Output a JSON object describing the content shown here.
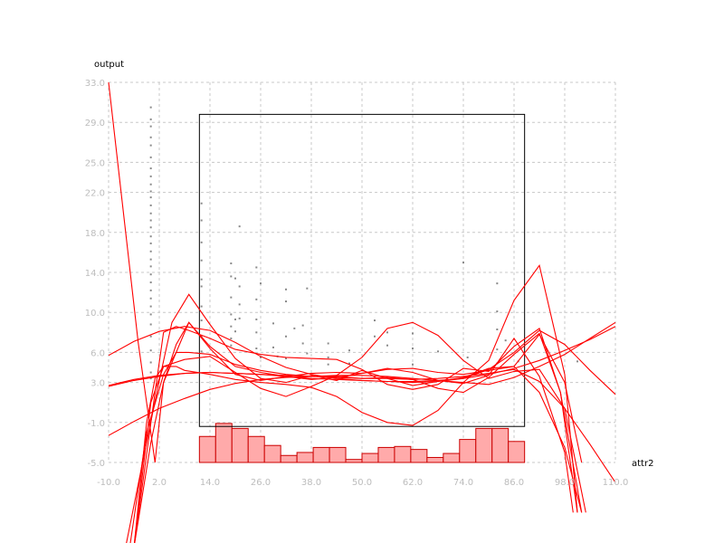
{
  "chart_data": {
    "type": "line",
    "xlabel": "attr2",
    "ylabel": "output",
    "xlim": [
      -10,
      110
    ],
    "ylim": [
      -5,
      33
    ],
    "x_ticks": [
      "-10.0",
      "2.0",
      "14.0",
      "26.0",
      "38.0",
      "50.0",
      "62.0",
      "74.0",
      "86.0",
      "98.0",
      "110.0"
    ],
    "y_ticks": [
      "-5.0",
      "-1.0",
      "3.0",
      "6.0",
      "10.0",
      "14.0",
      "18.0",
      "22.0",
      "25.0",
      "29.0",
      "33.0"
    ],
    "grid": true,
    "colors": {
      "curve": "#ff0000",
      "bar_fill": "#ffaaaa",
      "bar_stroke": "#cc0000",
      "points": "#8a8a8a",
      "box": "#000000",
      "grid": "#c8c8c8"
    },
    "box": {
      "x": [
        11.5,
        88.5
      ],
      "y": [
        -1.4,
        29.8
      ]
    },
    "histogram": {
      "bin_width": 3.85,
      "start": 11.5,
      "heights": [
        2.6,
        3.9,
        3.4,
        2.6,
        1.7,
        0.7,
        1.0,
        1.5,
        1.5,
        0.3,
        0.9,
        1.5,
        1.6,
        1.3,
        0.5,
        0.9,
        2.3,
        3.4,
        3.4,
        2.1
      ]
    },
    "series": [
      {
        "x": [
          -10,
          -4,
          2,
          8,
          14,
          20,
          26,
          32,
          38,
          44,
          50,
          56,
          62,
          68,
          74,
          80,
          86,
          92,
          98,
          104,
          110
        ],
        "y": [
          2.7,
          3.3,
          3.7,
          3.9,
          4.0,
          3.9,
          3.8,
          3.6,
          3.4,
          3.3,
          3.2,
          3.1,
          3.1,
          3.2,
          3.4,
          3.8,
          4.4,
          5.2,
          6.2,
          7.3,
          8.6
        ]
      },
      {
        "x": [
          -10,
          -4,
          2,
          8,
          14,
          20,
          26,
          32,
          38,
          44,
          50,
          56,
          62,
          68,
          74,
          80,
          86,
          92,
          98,
          104,
          110
        ],
        "y": [
          5.7,
          7.1,
          8.1,
          8.6,
          8.2,
          7.0,
          5.6,
          4.5,
          3.8,
          3.4,
          3.2,
          3.1,
          3.0,
          3.1,
          3.4,
          4.3,
          6.0,
          8.2,
          6.8,
          4.2,
          1.8
        ]
      },
      {
        "x": [
          -10,
          -4,
          2,
          8,
          14,
          20,
          26,
          32,
          38,
          44,
          50,
          56,
          62,
          68,
          74,
          80,
          86,
          92,
          98,
          104,
          110
        ],
        "y": [
          -2.3,
          -0.9,
          0.4,
          1.4,
          2.3,
          2.9,
          3.3,
          3.5,
          3.6,
          3.7,
          3.7,
          3.6,
          3.4,
          3.2,
          3.0,
          2.8,
          3.5,
          4.6,
          5.8,
          7.4,
          9.0
        ]
      },
      {
        "x": [
          -10,
          -4,
          2,
          8,
          14,
          20,
          26,
          32,
          38,
          44,
          50,
          56,
          62,
          68,
          74,
          80,
          86,
          92,
          98,
          104,
          110
        ],
        "y": [
          2.6,
          3.2,
          3.6,
          3.9,
          4.0,
          3.9,
          3.8,
          3.7,
          3.6,
          3.5,
          3.4,
          3.4,
          3.3,
          3.4,
          3.6,
          3.9,
          4.3,
          3.1,
          0.4,
          -3.2,
          -7.0
        ]
      },
      {
        "x": [
          -10,
          -3,
          1,
          3,
          7,
          9,
          14,
          20,
          26,
          32,
          38,
          44,
          50,
          56,
          62,
          68,
          74,
          80,
          86,
          92,
          98,
          102
        ],
        "y": [
          33.0,
          7.0,
          -5.0,
          3.0,
          7.0,
          9.0,
          6.4,
          3.8,
          3.2,
          3.6,
          3.9,
          4.0,
          3.9,
          4.3,
          4.4,
          4.0,
          3.8,
          4.2,
          4.6,
          2.0,
          -3.5,
          -10.0
        ]
      },
      {
        "x": [
          -4,
          0,
          3,
          6,
          9,
          14,
          20,
          26,
          32,
          38,
          44,
          50,
          56,
          62,
          68,
          74,
          80,
          86,
          92,
          98,
          100
        ],
        "y": [
          -15.0,
          -3.0,
          3.0,
          6.8,
          9.0,
          6.6,
          4.6,
          4.0,
          3.6,
          3.3,
          3.5,
          3.9,
          4.4,
          4.0,
          3.2,
          2.9,
          3.7,
          7.4,
          3.6,
          -4.0,
          -10.0
        ]
      },
      {
        "x": [
          -6,
          -1,
          2,
          5,
          9,
          14,
          20,
          26,
          32,
          38,
          44,
          50,
          56,
          62,
          68,
          74,
          80,
          86,
          92,
          98,
          102
        ],
        "y": [
          -15.0,
          -3.0,
          3.2,
          9.0,
          11.8,
          8.8,
          5.4,
          3.4,
          3.0,
          3.7,
          3.2,
          4.2,
          3.4,
          2.7,
          3.1,
          3.5,
          4.4,
          4.6,
          7.8,
          3.0,
          -5.0
        ]
      },
      {
        "x": [
          -4,
          -1,
          1,
          3,
          8,
          14,
          20,
          26,
          32,
          38,
          44,
          50,
          56,
          62,
          68,
          74,
          80,
          86,
          92,
          98,
          103
        ],
        "y": [
          -15.0,
          -1.0,
          3.4,
          4.6,
          5.3,
          5.6,
          4.0,
          2.4,
          1.6,
          2.6,
          3.7,
          5.5,
          8.4,
          9.0,
          7.7,
          5.2,
          3.4,
          4.1,
          4.3,
          0.4,
          -10.0
        ]
      },
      {
        "x": [
          -5,
          -1,
          3,
          6,
          9,
          14,
          20,
          26,
          32,
          38,
          44,
          50,
          56,
          62,
          68,
          74,
          80,
          86,
          92,
          97,
          101
        ],
        "y": [
          -15.0,
          -2.0,
          3.8,
          6.0,
          6.0,
          5.8,
          4.8,
          4.2,
          3.8,
          3.6,
          3.6,
          3.4,
          3.5,
          3.3,
          2.4,
          2.0,
          3.5,
          5.8,
          7.9,
          2.0,
          -10.0
        ]
      },
      {
        "x": [
          -4,
          1,
          3,
          6,
          9,
          14,
          20,
          26,
          32,
          38,
          44,
          50,
          56,
          62,
          68,
          74,
          80,
          86,
          92,
          97,
          102
        ],
        "y": [
          -15.0,
          2.0,
          8.0,
          8.6,
          8.2,
          7.4,
          6.3,
          5.8,
          5.5,
          5.4,
          5.3,
          4.3,
          2.8,
          2.3,
          2.8,
          4.4,
          4.1,
          6.6,
          8.4,
          2.0,
          -10.0
        ]
      },
      {
        "x": [
          -4,
          0,
          3,
          6,
          8,
          14,
          20,
          26,
          32,
          38,
          44,
          50,
          56,
          62,
          68,
          74,
          80,
          86,
          92,
          98,
          101
        ],
        "y": [
          -15.0,
          1.0,
          4.6,
          4.6,
          4.2,
          3.8,
          3.3,
          3.0,
          2.8,
          2.5,
          1.6,
          0.0,
          -1.0,
          -1.3,
          0.2,
          3.0,
          5.2,
          11.2,
          14.7,
          3.8,
          -10.0
        ]
      }
    ],
    "points": [
      [
        0.0,
        30.5
      ],
      [
        0.0,
        29.3
      ],
      [
        0.0,
        28.6
      ],
      [
        0.0,
        27.5
      ],
      [
        0.0,
        26.7
      ],
      [
        0.0,
        25.5
      ],
      [
        0.0,
        24.4
      ],
      [
        0.0,
        23.6
      ],
      [
        0.0,
        22.8
      ],
      [
        0.0,
        22.1
      ],
      [
        0.0,
        21.5
      ],
      [
        0.0,
        20.7
      ],
      [
        0.0,
        19.9
      ],
      [
        0.0,
        19.2
      ],
      [
        0.0,
        18.5
      ],
      [
        0.0,
        17.6
      ],
      [
        0.0,
        16.9
      ],
      [
        0.0,
        16.1
      ],
      [
        0.0,
        15.3
      ],
      [
        0.0,
        14.6
      ],
      [
        0.0,
        13.8
      ],
      [
        0.0,
        13.0
      ],
      [
        0.0,
        12.2
      ],
      [
        0.0,
        11.4
      ],
      [
        0.0,
        10.6
      ],
      [
        0.0,
        9.8
      ],
      [
        0.0,
        8.8
      ],
      [
        0.0,
        7.6
      ],
      [
        0.0,
        6.2
      ],
      [
        0.0,
        5.0
      ],
      [
        0.0,
        4.0
      ],
      [
        0.0,
        3.4
      ],
      [
        12.0,
        20.9
      ],
      [
        12.0,
        19.2
      ],
      [
        12.0,
        17.0
      ],
      [
        12.0,
        15.2
      ],
      [
        12.0,
        13.3
      ],
      [
        12.0,
        12.6
      ],
      [
        12.0,
        10.6
      ],
      [
        12.0,
        9.2
      ],
      [
        12.0,
        7.6
      ],
      [
        12.0,
        6.1
      ],
      [
        19.0,
        14.9
      ],
      [
        19.0,
        13.6
      ],
      [
        19.0,
        11.5
      ],
      [
        19.0,
        9.8
      ],
      [
        19.0,
        8.6
      ],
      [
        19.0,
        7.4
      ],
      [
        19.0,
        6.7
      ],
      [
        20.0,
        13.4
      ],
      [
        20.0,
        9.3
      ],
      [
        20.0,
        8.1
      ],
      [
        21.0,
        18.6
      ],
      [
        21.0,
        12.6
      ],
      [
        21.0,
        10.8
      ],
      [
        21.0,
        9.4
      ],
      [
        25.0,
        14.5
      ],
      [
        25.0,
        11.3
      ],
      [
        25.0,
        9.3
      ],
      [
        25.0,
        8.0
      ],
      [
        25.0,
        6.4
      ],
      [
        26.0,
        12.9
      ],
      [
        26.0,
        5.5
      ],
      [
        29.0,
        8.9
      ],
      [
        29.0,
        6.5
      ],
      [
        30.0,
        5.6
      ],
      [
        32.0,
        12.3
      ],
      [
        32.0,
        11.1
      ],
      [
        32.0,
        7.6
      ],
      [
        32.0,
        5.4
      ],
      [
        34.0,
        8.4
      ],
      [
        36.0,
        8.7
      ],
      [
        36.0,
        6.9
      ],
      [
        37.0,
        12.4
      ],
      [
        37.0,
        5.9
      ],
      [
        42.0,
        6.9
      ],
      [
        42.0,
        5.5
      ],
      [
        42.0,
        4.8
      ],
      [
        47.0,
        6.2
      ],
      [
        47.0,
        4.9
      ],
      [
        53.0,
        9.2
      ],
      [
        53.0,
        7.6
      ],
      [
        56.0,
        8.0
      ],
      [
        56.0,
        6.7
      ],
      [
        62.0,
        7.9
      ],
      [
        62.0,
        6.4
      ],
      [
        62.0,
        4.8
      ],
      [
        68.0,
        6.1
      ],
      [
        74.0,
        15.0
      ],
      [
        75.0,
        5.5
      ],
      [
        82.0,
        12.9
      ],
      [
        82.0,
        10.1
      ],
      [
        82.0,
        8.3
      ],
      [
        82.0,
        6.3
      ],
      [
        82.0,
        4.9
      ],
      [
        84.0,
        7.2
      ],
      [
        84.0,
        4.5
      ],
      [
        87.0,
        5.1
      ],
      [
        101.0,
        5.1
      ]
    ]
  }
}
